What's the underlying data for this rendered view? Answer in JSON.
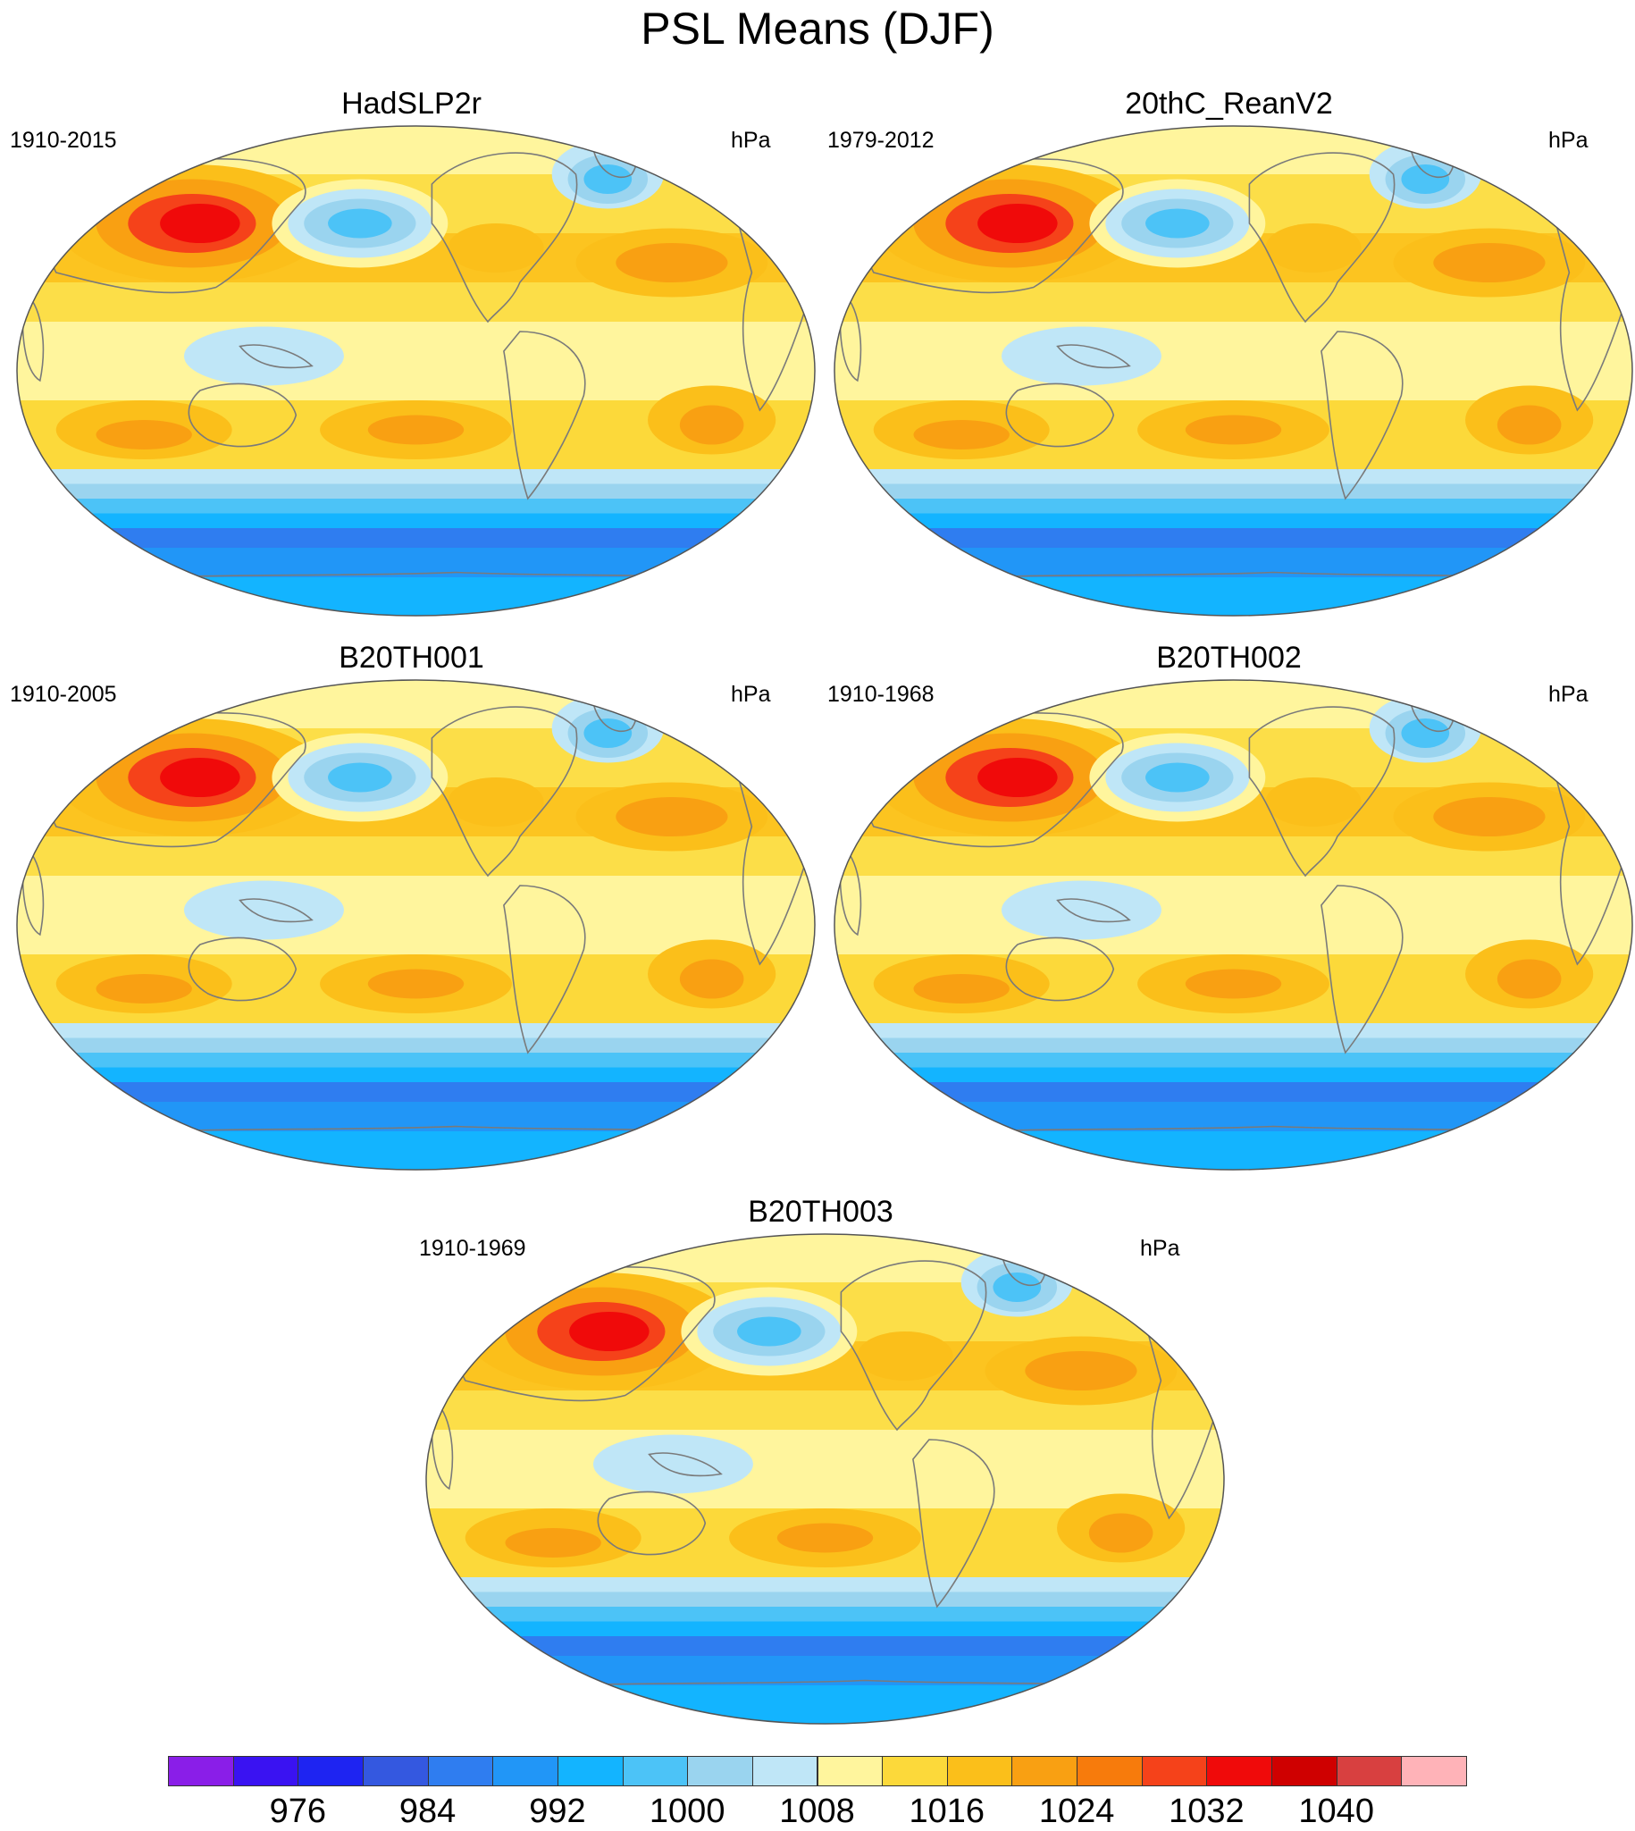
{
  "title": "PSL Means (DJF)",
  "colors": {
    "land_outline": "#7a7a7a",
    "map_border": "#555555",
    "ocean_base": "#fff59d"
  },
  "panels": [
    {
      "id": "hadslp2r",
      "title": "HadSLP2r",
      "period": "1910-2015",
      "units": "hPa"
    },
    {
      "id": "20thc-reanv2",
      "title": "20thC_ReanV2",
      "period": "1979-2012",
      "units": "hPa"
    },
    {
      "id": "b20th001",
      "title": "B20TH001",
      "period": "1910-2005",
      "units": "hPa"
    },
    {
      "id": "b20th002",
      "title": "B20TH002",
      "period": "1910-1968",
      "units": "hPa"
    },
    {
      "id": "b20th003",
      "title": "B20TH003",
      "period": "1910-1969",
      "units": "hPa"
    }
  ],
  "colorbar": {
    "colors": [
      "#8a1ee8",
      "#3a12f2",
      "#1e24f2",
      "#3458e0",
      "#2f7df0",
      "#2196f7",
      "#13b4ff",
      "#4cc3f7",
      "#9ad4ef",
      "#bfe6f7",
      "#fff59d",
      "#fcd93a",
      "#fbbf1a",
      "#f9a012",
      "#f77b0c",
      "#f5421a",
      "#f00a0a",
      "#cf0000",
      "#d84040",
      "#ffb3b8"
    ],
    "labels": [
      "976",
      "984",
      "992",
      "1000",
      "1008",
      "1016",
      "1024",
      "1032",
      "1040"
    ]
  }
}
